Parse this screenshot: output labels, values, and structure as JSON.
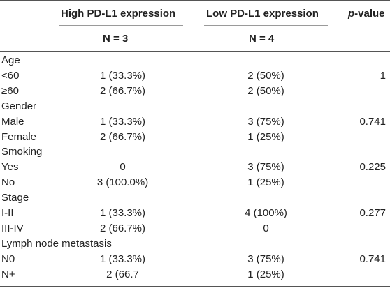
{
  "header": {
    "col_high": "High PD-L1 expression",
    "col_low": "Low PD-L1 expression",
    "pvalue_italic": "p",
    "pvalue_rest": "-value",
    "n_high": "N = 3",
    "n_low": "N = 4"
  },
  "rows": [
    {
      "label": "Age",
      "high": "",
      "low": "",
      "p": ""
    },
    {
      "label": "<60",
      "high": "1 (33.3%)",
      "low": "2 (50%)",
      "p": "1"
    },
    {
      "label": "≥60",
      "high": "2 (66.7%)",
      "low": "2 (50%)",
      "p": ""
    },
    {
      "label": "Gender",
      "high": "",
      "low": "",
      "p": ""
    },
    {
      "label": "Male",
      "high": "1 (33.3%)",
      "low": "3 (75%)",
      "p": "0.741"
    },
    {
      "label": "Female",
      "high": "2 (66.7%)",
      "low": "1 (25%)",
      "p": ""
    },
    {
      "label": "Smoking",
      "high": "",
      "low": "",
      "p": ""
    },
    {
      "label": "Yes",
      "high": "0",
      "low": "3 (75%)",
      "p": "0.225"
    },
    {
      "label": "No",
      "high": "3 (100.0%)",
      "low": "1 (25%)",
      "p": ""
    },
    {
      "label": "Stage",
      "high": "",
      "low": "",
      "p": ""
    },
    {
      "label": "I-II",
      "high": "1 (33.3%)",
      "low": "4 (100%)",
      "p": "0.277"
    },
    {
      "label": "III-IV",
      "high": "2 (66.7%)",
      "low": "0",
      "p": ""
    },
    {
      "label": "Lymph node metastasis",
      "high": "",
      "low": "",
      "p": ""
    },
    {
      "label": "N0",
      "high": "1 (33.3%)",
      "low": "3 (75%)",
      "p": "0.741"
    },
    {
      "label": "N+",
      "high": "2 (66.7",
      "low": "1 (25%)",
      "p": ""
    }
  ]
}
